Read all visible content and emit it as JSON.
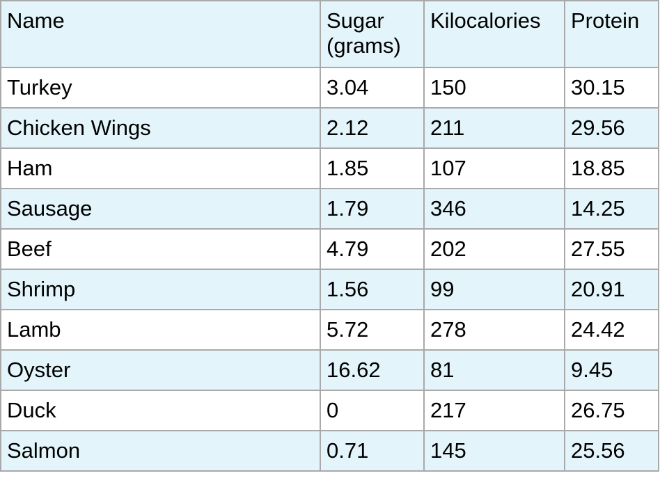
{
  "table": {
    "headers": [
      "Name",
      "Sugar (grams)",
      "Kilocalories",
      "Protein"
    ],
    "rows": [
      [
        "Turkey",
        "3.04",
        "150",
        "30.15"
      ],
      [
        "Chicken Wings",
        "2.12",
        "211",
        "29.56"
      ],
      [
        "Ham",
        "1.85",
        "107",
        "18.85"
      ],
      [
        "Sausage",
        "1.79",
        "346",
        "14.25"
      ],
      [
        "Beef",
        "4.79",
        "202",
        "27.55"
      ],
      [
        "Shrimp",
        "1.56",
        "99",
        "20.91"
      ],
      [
        "Lamb",
        "5.72",
        "278",
        "24.42"
      ],
      [
        "Oyster",
        "16.62",
        "81",
        "9.45"
      ],
      [
        "Duck",
        "0",
        "217",
        "26.75"
      ],
      [
        "Salmon",
        "0.71",
        "145",
        "25.56"
      ]
    ]
  },
  "colors": {
    "header_bg": "#e3f5fb",
    "stripe_bg": "#e3f5fb",
    "row_bg": "#ffffff",
    "border": "#a9a9a9"
  }
}
